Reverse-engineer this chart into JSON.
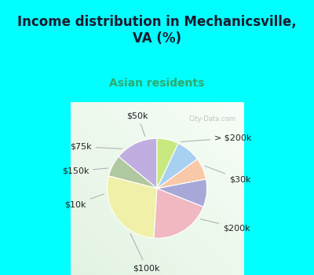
{
  "title": "Income distribution in Mechanicsville,\nVA (%)",
  "subtitle": "Asian residents",
  "bg_cyan": "#00FFFF",
  "bg_chart": "#e8f5ee",
  "slices": [
    {
      "label": "> $200k",
      "value": 14,
      "color": "#c0aee0"
    },
    {
      "label": "$30k",
      "value": 7,
      "color": "#b0c8a0"
    },
    {
      "label": "$200k",
      "value": 28,
      "color": "#f0f0a8"
    },
    {
      "label": "$100k",
      "value": 20,
      "color": "#f0b8c0"
    },
    {
      "label": "$10k",
      "value": 9,
      "color": "#a8a8d8"
    },
    {
      "label": "$150k",
      "value": 7,
      "color": "#f8c8a8"
    },
    {
      "label": "$75k",
      "value": 8,
      "color": "#a8d0f0"
    },
    {
      "label": "$50k",
      "value": 7,
      "color": "#c8e880"
    }
  ],
  "label_fontsize": 8,
  "title_fontsize": 12,
  "subtitle_fontsize": 10,
  "subtitle_color": "#2eaa6e",
  "title_color": "#1a1a2e",
  "startangle": 90
}
